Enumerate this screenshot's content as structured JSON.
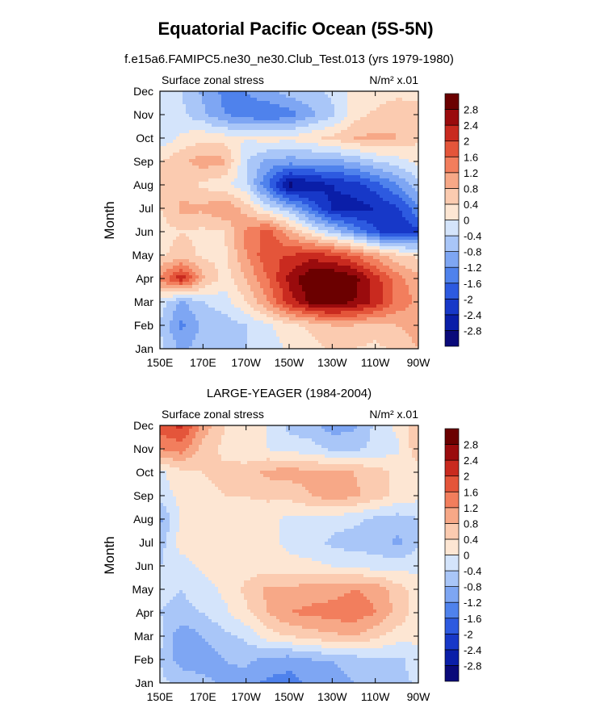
{
  "figure": {
    "title": "Equatorial Pacific Ocean (5S-5N)",
    "colors": [
      "#0a0a7a",
      "#0a1ea8",
      "#1738c8",
      "#2d5ae0",
      "#4f82ec",
      "#7ea6f3",
      "#a9c6f8",
      "#d4e4fb",
      "#fde6d3",
      "#fbcbb0",
      "#f7a887",
      "#f27e5d",
      "#e4553a",
      "#c92a1f",
      "#9a0b0d",
      "#6b0000"
    ],
    "colorbar_ticks": [
      "-2.8",
      "-2.4",
      "-2",
      "-1.6",
      "-1.2",
      "-0.8",
      "-0.4",
      "0",
      "0.4",
      "0.8",
      "1.2",
      "1.6",
      "2",
      "2.4",
      "2.8"
    ]
  },
  "chart_data": [
    {
      "type": "heatmap",
      "title": "f.e15a6.FAMIPC5.ne30_ne30.Club_Test.013 (yrs 1979-1980)",
      "left_label": "Surface zonal stress",
      "right_label": "N/m² x.01",
      "xlabel": "",
      "ylabel": "Month",
      "x_ticks": [
        "150E",
        "170E",
        "170W",
        "150W",
        "130W",
        "110W",
        "90W"
      ],
      "x_lon": [
        150,
        170,
        190,
        210,
        230,
        250,
        270
      ],
      "xlim": [
        150,
        270
      ],
      "y_ticks": [
        "Jan",
        "Feb",
        "Mar",
        "Apr",
        "May",
        "Jun",
        "Jul",
        "Aug",
        "Sep",
        "Oct",
        "Nov",
        "Dec"
      ],
      "levels": [
        -2.8,
        -2.4,
        -2.0,
        -1.6,
        -1.2,
        -0.8,
        -0.4,
        0,
        0.4,
        0.8,
        1.2,
        1.6,
        2.0,
        2.4,
        2.8
      ],
      "lon": [
        150,
        160,
        170,
        180,
        190,
        200,
        210,
        220,
        230,
        240,
        250,
        260,
        270
      ],
      "months": [
        "Jan",
        "Feb",
        "Mar",
        "Apr",
        "May",
        "Jun",
        "Jul",
        "Aug",
        "Sep",
        "Oct",
        "Nov",
        "Dec"
      ],
      "values": [
        [
          -0.3,
          -0.9,
          -0.6,
          -0.5,
          -0.4,
          -0.3,
          0.1,
          0.2,
          0.5,
          0.4,
          0.3,
          0.5,
          0.8
        ],
        [
          -0.4,
          -1.3,
          -0.7,
          -0.6,
          -0.4,
          -0.1,
          0.3,
          0.5,
          0.8,
          0.8,
          0.6,
          0.8,
          1.0
        ],
        [
          -0.2,
          -0.9,
          -0.4,
          -0.2,
          0.4,
          1.2,
          2.2,
          2.9,
          3.1,
          2.8,
          2.3,
          1.5,
          1.1
        ],
        [
          1.3,
          2.3,
          0.9,
          0.2,
          0.8,
          1.6,
          2.5,
          3.2,
          3.3,
          3.0,
          2.2,
          1.4,
          0.9
        ],
        [
          0.3,
          0.6,
          0.3,
          0.3,
          1.2,
          1.9,
          2.0,
          2.2,
          2.0,
          1.6,
          1.0,
          0.5,
          0.3
        ],
        [
          0.2,
          0.4,
          0.3,
          0.4,
          1.3,
          1.8,
          0.9,
          0.1,
          -0.5,
          -1.2,
          -1.9,
          -2.3,
          -2.1
        ],
        [
          0.4,
          0.9,
          0.9,
          1.2,
          0.6,
          -0.2,
          -0.7,
          -1.6,
          -2.5,
          -2.6,
          -2.4,
          -2.1,
          -1.3
        ],
        [
          0.5,
          0.6,
          0.3,
          0.1,
          -0.3,
          -1.6,
          -3.0,
          -2.7,
          -2.4,
          -2.2,
          -1.8,
          -1.2,
          -0.6
        ],
        [
          0.4,
          0.7,
          1.0,
          0.9,
          -0.4,
          -0.9,
          -1.0,
          -1.0,
          -0.9,
          -0.8,
          -0.4,
          -0.2,
          0.1
        ],
        [
          -0.3,
          0.1,
          0.3,
          0.2,
          0.0,
          0.2,
          0.1,
          0.3,
          0.5,
          0.8,
          0.9,
          0.8,
          0.5
        ],
        [
          -0.4,
          -0.3,
          -0.7,
          -1.2,
          -1.4,
          -1.6,
          -1.4,
          -0.9,
          -0.5,
          0.2,
          0.5,
          0.8,
          0.5
        ],
        [
          -0.2,
          -0.4,
          -0.9,
          -1.3,
          -1.2,
          -0.9,
          -0.6,
          -0.5,
          -0.3,
          0.1,
          0.1,
          0.2,
          0.3
        ]
      ]
    },
    {
      "type": "heatmap",
      "title": "LARGE-YEAGER (1984-2004)",
      "left_label": "Surface zonal stress",
      "right_label": "N/m² x.01",
      "xlabel": "",
      "ylabel": "Month",
      "x_ticks": [
        "150E",
        "170E",
        "170W",
        "150W",
        "130W",
        "110W",
        "90W"
      ],
      "x_lon": [
        150,
        170,
        190,
        210,
        230,
        250,
        270
      ],
      "xlim": [
        150,
        270
      ],
      "y_ticks": [
        "Jan",
        "Feb",
        "Mar",
        "Apr",
        "May",
        "Jun",
        "Jul",
        "Aug",
        "Sep",
        "Oct",
        "Nov",
        "Dec"
      ],
      "levels": [
        -2.8,
        -2.4,
        -2.0,
        -1.6,
        -1.2,
        -0.8,
        -0.4,
        0,
        0.4,
        0.8,
        1.2,
        1.6,
        2.0,
        2.4,
        2.8
      ],
      "lon": [
        150,
        160,
        170,
        180,
        190,
        200,
        210,
        220,
        230,
        240,
        250,
        260,
        270
      ],
      "months": [
        "Jan",
        "Feb",
        "Mar",
        "Apr",
        "May",
        "Jun",
        "Jul",
        "Aug",
        "Sep",
        "Oct",
        "Nov",
        "Dec"
      ],
      "values": [
        [
          -0.3,
          -0.5,
          -0.7,
          -0.9,
          -1.0,
          -1.3,
          -1.4,
          -1.1,
          -1.0,
          -0.8,
          -0.6,
          -0.6,
          -0.3
        ],
        [
          -0.4,
          -1.0,
          -1.0,
          -0.8,
          -0.7,
          -0.9,
          -1.0,
          -0.8,
          -0.8,
          -0.6,
          -0.5,
          -0.5,
          -0.2
        ],
        [
          -0.3,
          -1.1,
          -0.8,
          -0.5,
          -0.3,
          0.2,
          0.4,
          0.6,
          0.7,
          0.8,
          0.5,
          0.2,
          0.1
        ],
        [
          -0.4,
          -0.5,
          -0.4,
          -0.1,
          0.3,
          0.8,
          1.2,
          1.3,
          1.4,
          1.5,
          1.2,
          0.7,
          0.2
        ],
        [
          -0.3,
          -0.4,
          -0.2,
          0.1,
          0.5,
          0.9,
          0.9,
          1.0,
          1.0,
          1.2,
          1.1,
          0.6,
          0.2
        ],
        [
          -0.4,
          -0.2,
          0.1,
          0.2,
          0.2,
          0.2,
          0.1,
          0.1,
          0.0,
          -0.1,
          -0.2,
          -0.2,
          -0.1
        ],
        [
          -0.6,
          0.2,
          0.3,
          0.3,
          0.3,
          0.1,
          -0.1,
          -0.2,
          -0.5,
          -0.6,
          -0.6,
          -0.9,
          -0.5
        ],
        [
          -0.9,
          0.1,
          0.3,
          0.3,
          0.2,
          0.1,
          -0.1,
          -0.1,
          -0.2,
          -0.3,
          -0.5,
          -0.6,
          -0.4
        ],
        [
          -0.2,
          0.1,
          0.3,
          0.4,
          0.4,
          0.5,
          0.5,
          0.8,
          1.0,
          0.9,
          0.6,
          0.3,
          0.1
        ],
        [
          -0.1,
          0.3,
          0.4,
          0.5,
          0.6,
          0.9,
          1.0,
          0.9,
          0.9,
          0.8,
          0.6,
          0.3,
          0.2
        ],
        [
          1.2,
          1.4,
          0.6,
          0.3,
          0.1,
          0.0,
          -0.2,
          -0.2,
          -0.5,
          -0.5,
          -0.3,
          -0.1,
          0.7
        ],
        [
          1.8,
          2.1,
          1.1,
          0.4,
          0.2,
          0.0,
          -0.5,
          -0.7,
          -1.0,
          -0.9,
          -0.3,
          0.1,
          0.6
        ]
      ]
    }
  ]
}
